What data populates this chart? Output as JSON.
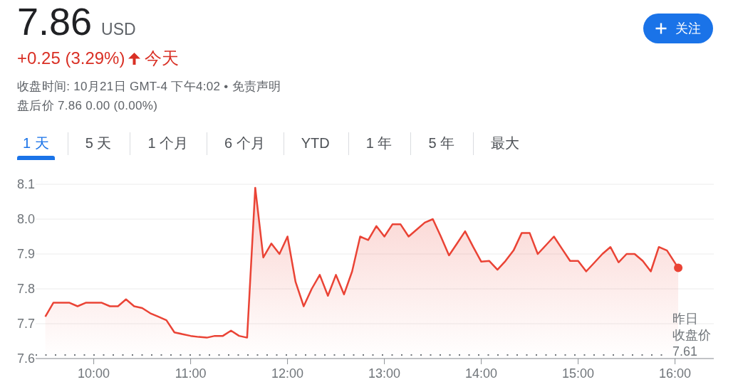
{
  "chart_data": {
    "type": "area",
    "title": "7.86",
    "subtitle": "USD",
    "annotations": [
      "+0.25 (3.29%)",
      "今天",
      "收盘时间: 10月21日 GMT-4 下午4:02 • 免责声明",
      "盘后价 7.86 0.00 (0.00%)",
      "1 天",
      "5 天",
      "1 个月",
      "6 个月",
      "YTD",
      "1 年",
      "5 年",
      "最大",
      "关注"
    ],
    "x": [
      9.5,
      9.583,
      9.667,
      9.75,
      9.833,
      9.917,
      10,
      10.083,
      10.167,
      10.25,
      10.333,
      10.417,
      10.5,
      10.583,
      10.667,
      10.75,
      10.833,
      10.917,
      11,
      11.083,
      11.167,
      11.25,
      11.333,
      11.417,
      11.5,
      11.583,
      11.667,
      11.75,
      11.833,
      11.917,
      12,
      12.083,
      12.167,
      12.25,
      12.333,
      12.417,
      12.5,
      12.583,
      12.667,
      12.75,
      12.833,
      12.917,
      13,
      13.083,
      13.167,
      13.25,
      13.333,
      13.417,
      13.5,
      13.583,
      13.667,
      13.75,
      13.833,
      13.917,
      14,
      14.083,
      14.167,
      14.25,
      14.333,
      14.417,
      14.5,
      14.583,
      14.667,
      14.75,
      14.833,
      14.917,
      15,
      15.083,
      15.167,
      15.25,
      15.333,
      15.417,
      15.5,
      15.583,
      15.667,
      15.75,
      15.833,
      15.917,
      16.033
    ],
    "series": [
      {
        "color": "#ea4335",
        "values": [
          7.72,
          7.76,
          7.76,
          7.76,
          7.75,
          7.76,
          7.76,
          7.76,
          7.75,
          7.75,
          7.77,
          7.75,
          7.745,
          7.73,
          7.72,
          7.71,
          7.675,
          7.67,
          7.665,
          7.662,
          7.66,
          7.665,
          7.665,
          7.68,
          7.665,
          7.66,
          8.09,
          7.89,
          7.93,
          7.9,
          7.95,
          7.82,
          7.75,
          7.8,
          7.84,
          7.78,
          7.84,
          7.784,
          7.85,
          7.95,
          7.94,
          7.98,
          7.95,
          7.985,
          7.985,
          7.95,
          7.97,
          7.99,
          8.0,
          7.95,
          7.896,
          7.93,
          7.965,
          7.92,
          7.878,
          7.88,
          7.855,
          7.88,
          7.91,
          7.96,
          7.96,
          7.9,
          7.925,
          7.95,
          7.915,
          7.88,
          7.88,
          7.85,
          7.875,
          7.9,
          7.92,
          7.876,
          7.9,
          7.9,
          7.88,
          7.85,
          7.92,
          7.91,
          7.86
        ]
      },
      {
        "type": "scatter",
        "x": [
          16.033
        ],
        "values": [
          7.86
        ],
        "color": "#ea4335",
        "marker": "circle"
      }
    ],
    "xlim": [
      9.4,
      16.4
    ],
    "xticks": [
      {
        "value": 10,
        "label": "10:00"
      },
      {
        "value": 11,
        "label": "11:00"
      },
      {
        "value": 12,
        "label": "12:00"
      },
      {
        "value": 13,
        "label": "13:00"
      },
      {
        "value": 14,
        "label": "14:00"
      },
      {
        "value": 15,
        "label": "15:00"
      },
      {
        "value": 16,
        "label": "16:00"
      }
    ],
    "ylim": [
      7.6,
      8.1
    ],
    "yticks": [
      7.6,
      7.7,
      7.8,
      7.9,
      {
        "value": 8,
        "label": "8.0"
      },
      8.1
    ],
    "grid": "y",
    "marker": "none",
    "line_style": "solid",
    "ref_lines": [
      {
        "axis": "y",
        "value": 7.61,
        "label": "昨日收盘价\n7.61",
        "line_style": "dotted",
        "color": "#70757a"
      }
    ]
  }
}
